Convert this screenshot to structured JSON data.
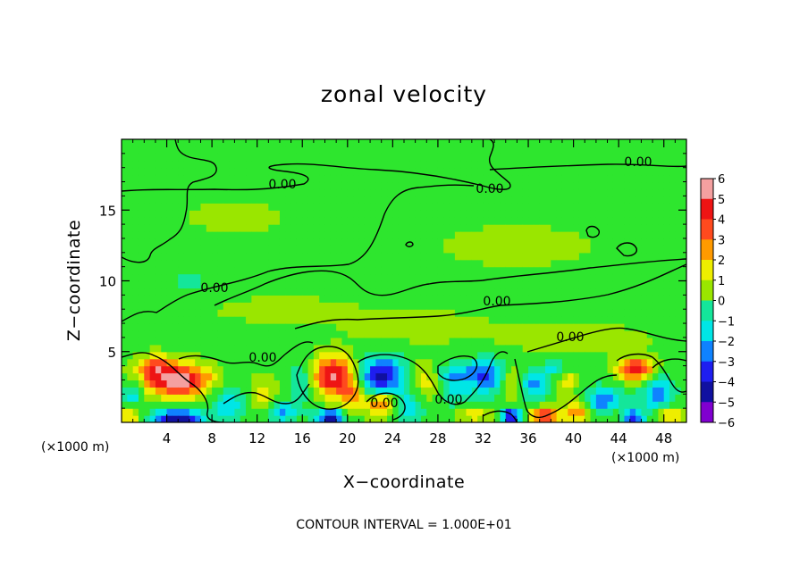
{
  "chart_data": {
    "type": "heatmap",
    "title": "zonal velocity",
    "xlabel": "X−coordinate",
    "ylabel": "Z−coordinate",
    "x_unit_label": "(×1000 m)",
    "y_unit_label": "(×1000 m)",
    "xlim": [
      0,
      50
    ],
    "ylim": [
      0,
      20
    ],
    "x_ticks": [
      4,
      8,
      12,
      16,
      20,
      24,
      28,
      32,
      36,
      40,
      44,
      48
    ],
    "y_ticks": [
      5,
      10,
      15
    ],
    "colorbar": {
      "min": -6,
      "max": 6,
      "ticks": [
        "6",
        "5",
        "4",
        "3",
        "2",
        "1",
        "0",
        "−1",
        "−2",
        "−3",
        "−4",
        "−5",
        "−6"
      ],
      "colors": {
        "6": "#f4a0a0",
        "5": "#ee1414",
        "4": "#ff4a1e",
        "3": "#ff9a00",
        "2": "#eeee00",
        "1": "#9ae600",
        "0": "#2ee62e",
        "-1": "#14e69a",
        "-2": "#00e6e6",
        "-3": "#0f82ff",
        "-4": "#1e1ef0",
        "-5": "#1010a0",
        "-6": "#8000d0"
      }
    },
    "contour_labels": [
      "0.00",
      "0.00",
      "0.00",
      "0.00",
      "0.00",
      "0.00",
      "0.00",
      "0.00",
      "0.00"
    ],
    "contour_interval_text": "CONTOUR INTERVAL = 1.000E+01",
    "grid": false,
    "blobs": [
      {
        "x": 5.0,
        "z": 3.0,
        "rx": 3.0,
        "rz": 1.1,
        "v": 6.0
      },
      {
        "x": 3.0,
        "z": 4.0,
        "rx": 1.5,
        "rz": 0.8,
        "v": 3.0
      },
      {
        "x": 5.0,
        "z": 0.3,
        "rx": 2.2,
        "rz": 0.7,
        "v": -5.5
      },
      {
        "x": 0.8,
        "z": 0.5,
        "rx": 1.0,
        "rz": 0.7,
        "v": 2.5
      },
      {
        "x": 1.0,
        "z": 2.0,
        "rx": 0.9,
        "rz": 1.0,
        "v": -2.5
      },
      {
        "x": 9.5,
        "z": 1.4,
        "rx": 1.5,
        "rz": 1.5,
        "v": -2.5
      },
      {
        "x": 12.5,
        "z": 1.8,
        "rx": 1.3,
        "rz": 1.4,
        "v": 2.0
      },
      {
        "x": 14.0,
        "z": 0.8,
        "rx": 1.6,
        "rz": 0.8,
        "v": -3.0
      },
      {
        "x": 16.0,
        "z": 3.0,
        "rx": 1.0,
        "rz": 1.5,
        "v": -2.0
      },
      {
        "x": 18.8,
        "z": 3.3,
        "rx": 1.9,
        "rz": 1.4,
        "v": 5.5
      },
      {
        "x": 18.5,
        "z": 0.4,
        "rx": 1.3,
        "rz": 0.5,
        "v": -5.5
      },
      {
        "x": 20.5,
        "z": 1.8,
        "rx": 1.0,
        "rz": 1.2,
        "v": 2.5
      },
      {
        "x": 23.0,
        "z": 3.3,
        "rx": 2.0,
        "rz": 1.4,
        "v": -5.0
      },
      {
        "x": 23.0,
        "z": 1.3,
        "rx": 1.2,
        "rz": 0.8,
        "v": 4.0
      },
      {
        "x": 25.5,
        "z": 1.0,
        "rx": 1.2,
        "rz": 1.2,
        "v": -2.5
      },
      {
        "x": 27.0,
        "z": 3.0,
        "rx": 1.3,
        "rz": 1.3,
        "v": 2.0
      },
      {
        "x": 29.5,
        "z": 2.5,
        "rx": 1.5,
        "rz": 1.6,
        "v": -2.0
      },
      {
        "x": 31.0,
        "z": 0.6,
        "rx": 1.8,
        "rz": 0.6,
        "v": 2.0
      },
      {
        "x": 32.3,
        "z": 3.3,
        "rx": 1.6,
        "rz": 1.3,
        "v": -3.5
      },
      {
        "x": 34.5,
        "z": 0.5,
        "rx": 1.0,
        "rz": 0.6,
        "v": -5.0
      },
      {
        "x": 34.5,
        "z": 2.6,
        "rx": 0.9,
        "rz": 1.2,
        "v": 2.0
      },
      {
        "x": 36.5,
        "z": 2.6,
        "rx": 1.2,
        "rz": 1.0,
        "v": -3.0
      },
      {
        "x": 37.5,
        "z": 0.5,
        "rx": 1.4,
        "rz": 0.6,
        "v": 4.5
      },
      {
        "x": 39.5,
        "z": 3.0,
        "rx": 1.0,
        "rz": 1.0,
        "v": 2.0
      },
      {
        "x": 40.5,
        "z": 0.9,
        "rx": 1.3,
        "rz": 0.8,
        "v": 3.5
      },
      {
        "x": 42.5,
        "z": 1.5,
        "rx": 2.0,
        "rz": 1.0,
        "v": -3.5
      },
      {
        "x": 44.0,
        "z": 0.5,
        "rx": 1.0,
        "rz": 0.5,
        "v": 3.0
      },
      {
        "x": 45.5,
        "z": 3.8,
        "rx": 1.6,
        "rz": 0.8,
        "v": 5.0
      },
      {
        "x": 45.0,
        "z": 0.4,
        "rx": 1.2,
        "rz": 0.5,
        "v": -5.5
      },
      {
        "x": 47.5,
        "z": 2.0,
        "rx": 1.4,
        "rz": 1.2,
        "v": -3.5
      },
      {
        "x": 48.5,
        "z": 0.6,
        "rx": 1.2,
        "rz": 0.6,
        "v": 3.0
      },
      {
        "x": 38.5,
        "z": 3.8,
        "rx": 1.5,
        "rz": 0.6,
        "v": -2.0
      },
      {
        "x": 30.0,
        "z": 3.5,
        "rx": 2.5,
        "rz": 0.6,
        "v": -1.5
      },
      {
        "x": 26.0,
        "z": 6.8,
        "rx": 6.0,
        "rz": 1.0,
        "v": 1.0
      },
      {
        "x": 14.0,
        "z": 8.0,
        "rx": 6.0,
        "rz": 0.8,
        "v": 1.0
      },
      {
        "x": 40.0,
        "z": 6.0,
        "rx": 7.0,
        "rz": 1.0,
        "v": 0.8
      },
      {
        "x": 6.0,
        "z": 10.0,
        "rx": 3.5,
        "rz": 2.0,
        "v": -0.8
      },
      {
        "x": 35.0,
        "z": 12.5,
        "rx": 9.0,
        "rz": 2.0,
        "v": 0.5
      },
      {
        "x": 10.0,
        "z": 14.5,
        "rx": 6.0,
        "rz": 1.5,
        "v": 0.5
      },
      {
        "x": 25.0,
        "z": 17.5,
        "rx": 8.0,
        "rz": 1.5,
        "v": 0.3
      }
    ]
  }
}
